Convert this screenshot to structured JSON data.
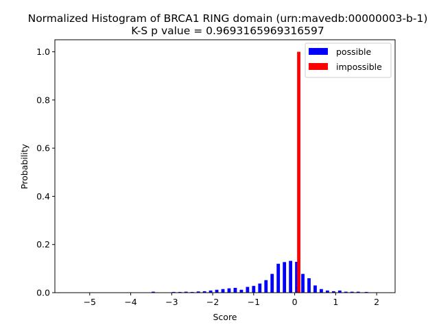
{
  "chart_data": {
    "type": "bar",
    "title": "Normalized Histogram of BRCA1 RING domain (urn:mavedb:00000003-b-1)",
    "subtitle": "K-S p value = 0.9693165969316597",
    "xlabel": "Score",
    "ylabel": "Probability",
    "xlim": [
      -5.85,
      2.45
    ],
    "ylim": [
      0,
      1.05
    ],
    "xticks": [
      -5,
      -4,
      -3,
      -2,
      -1,
      0,
      1,
      2
    ],
    "xtick_labels": [
      "−5",
      "−4",
      "−3",
      "−2",
      "−1",
      "0",
      "1",
      "2"
    ],
    "yticks": [
      0.0,
      0.2,
      0.4,
      0.6,
      0.8,
      1.0
    ],
    "ytick_labels": [
      "0.0",
      "0.2",
      "0.4",
      "0.6",
      "0.8",
      "1.0"
    ],
    "legend_position": "top-right",
    "grid": false,
    "series": [
      {
        "name": "possible",
        "color": "#0000ff",
        "bar_width": 0.08,
        "x": [
          -3.45,
          -2.95,
          -2.8,
          -2.65,
          -2.5,
          -2.35,
          -2.2,
          -2.05,
          -1.9,
          -1.75,
          -1.6,
          -1.45,
          -1.3,
          -1.15,
          -1.0,
          -0.85,
          -0.7,
          -0.55,
          -0.4,
          -0.25,
          -0.1,
          0.05,
          0.2,
          0.35,
          0.5,
          0.65,
          0.8,
          0.95,
          1.1,
          1.25,
          1.4,
          1.55,
          1.75
        ],
        "values": [
          0.004,
          0.003,
          0.003,
          0.004,
          0.003,
          0.005,
          0.006,
          0.009,
          0.012,
          0.015,
          0.018,
          0.02,
          0.012,
          0.024,
          0.028,
          0.038,
          0.052,
          0.078,
          0.12,
          0.127,
          0.132,
          0.128,
          0.078,
          0.06,
          0.03,
          0.015,
          0.009,
          0.006,
          0.009,
          0.004,
          0.004,
          0.004,
          0.003
        ]
      },
      {
        "name": "impossible",
        "color": "#ff0000",
        "bar_width": 0.08,
        "x": [
          0.1
        ],
        "values": [
          1.0
        ]
      }
    ]
  }
}
